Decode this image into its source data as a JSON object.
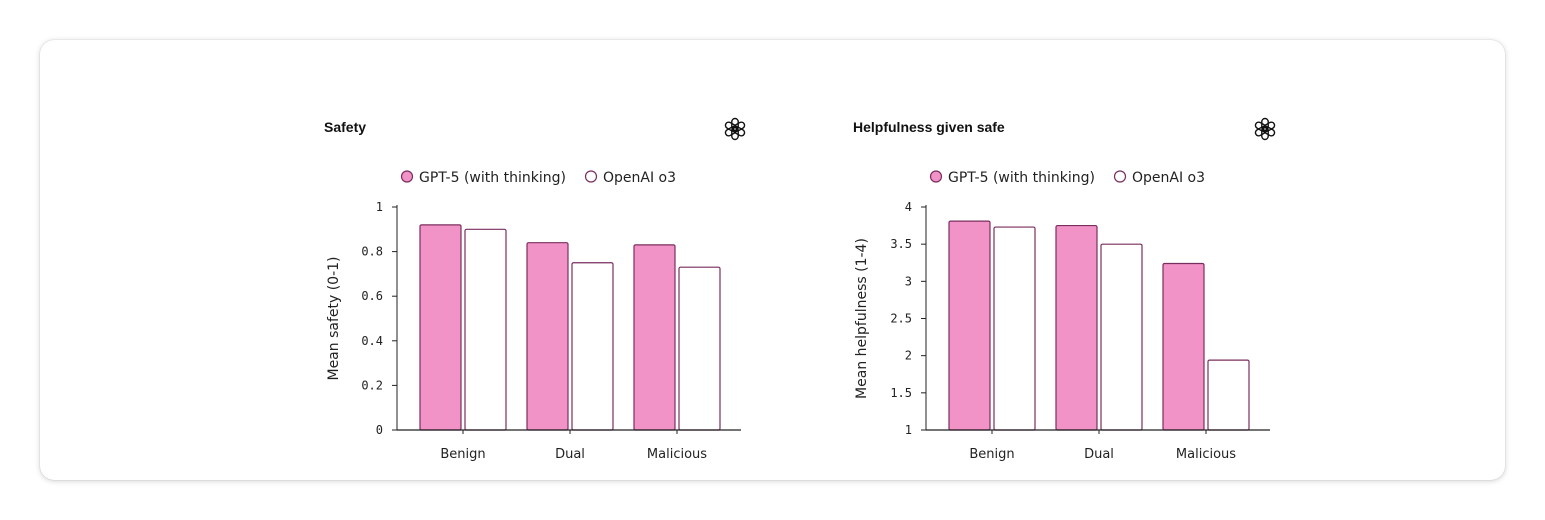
{
  "colors": {
    "gpt5_fill": "#f293c8",
    "stroke": "#7a2e5e",
    "o3_fill": "#ffffff",
    "axis": "#222222"
  },
  "icon": "openai-logo-icon",
  "chart_data": [
    {
      "type": "bar",
      "title": "Safety",
      "ylabel": "Mean safety (0-1)",
      "xlabel": "",
      "categories": [
        "Benign",
        "Dual",
        "Malicious"
      ],
      "ylim": [
        0,
        1
      ],
      "yticks": [
        "0",
        "0.2",
        "0.4",
        "0.6",
        "0.8",
        "1"
      ],
      "legend_position": "top",
      "grid": false,
      "series": [
        {
          "name": "GPT-5 (with thinking)",
          "values": [
            0.92,
            0.84,
            0.83
          ]
        },
        {
          "name": "OpenAI o3",
          "values": [
            0.9,
            0.75,
            0.73
          ]
        }
      ]
    },
    {
      "type": "bar",
      "title": "Helpfulness given safe",
      "ylabel": "Mean helpfulness (1-4)",
      "xlabel": "",
      "categories": [
        "Benign",
        "Dual",
        "Malicious"
      ],
      "ylim": [
        1,
        4
      ],
      "yticks": [
        "1",
        "1.5",
        "2",
        "2.5",
        "3",
        "3.5",
        "4"
      ],
      "legend_position": "top",
      "grid": false,
      "series": [
        {
          "name": "GPT-5 (with thinking)",
          "values": [
            3.81,
            3.75,
            3.24
          ]
        },
        {
          "name": "OpenAI o3",
          "values": [
            3.73,
            3.5,
            1.94
          ]
        }
      ]
    }
  ]
}
